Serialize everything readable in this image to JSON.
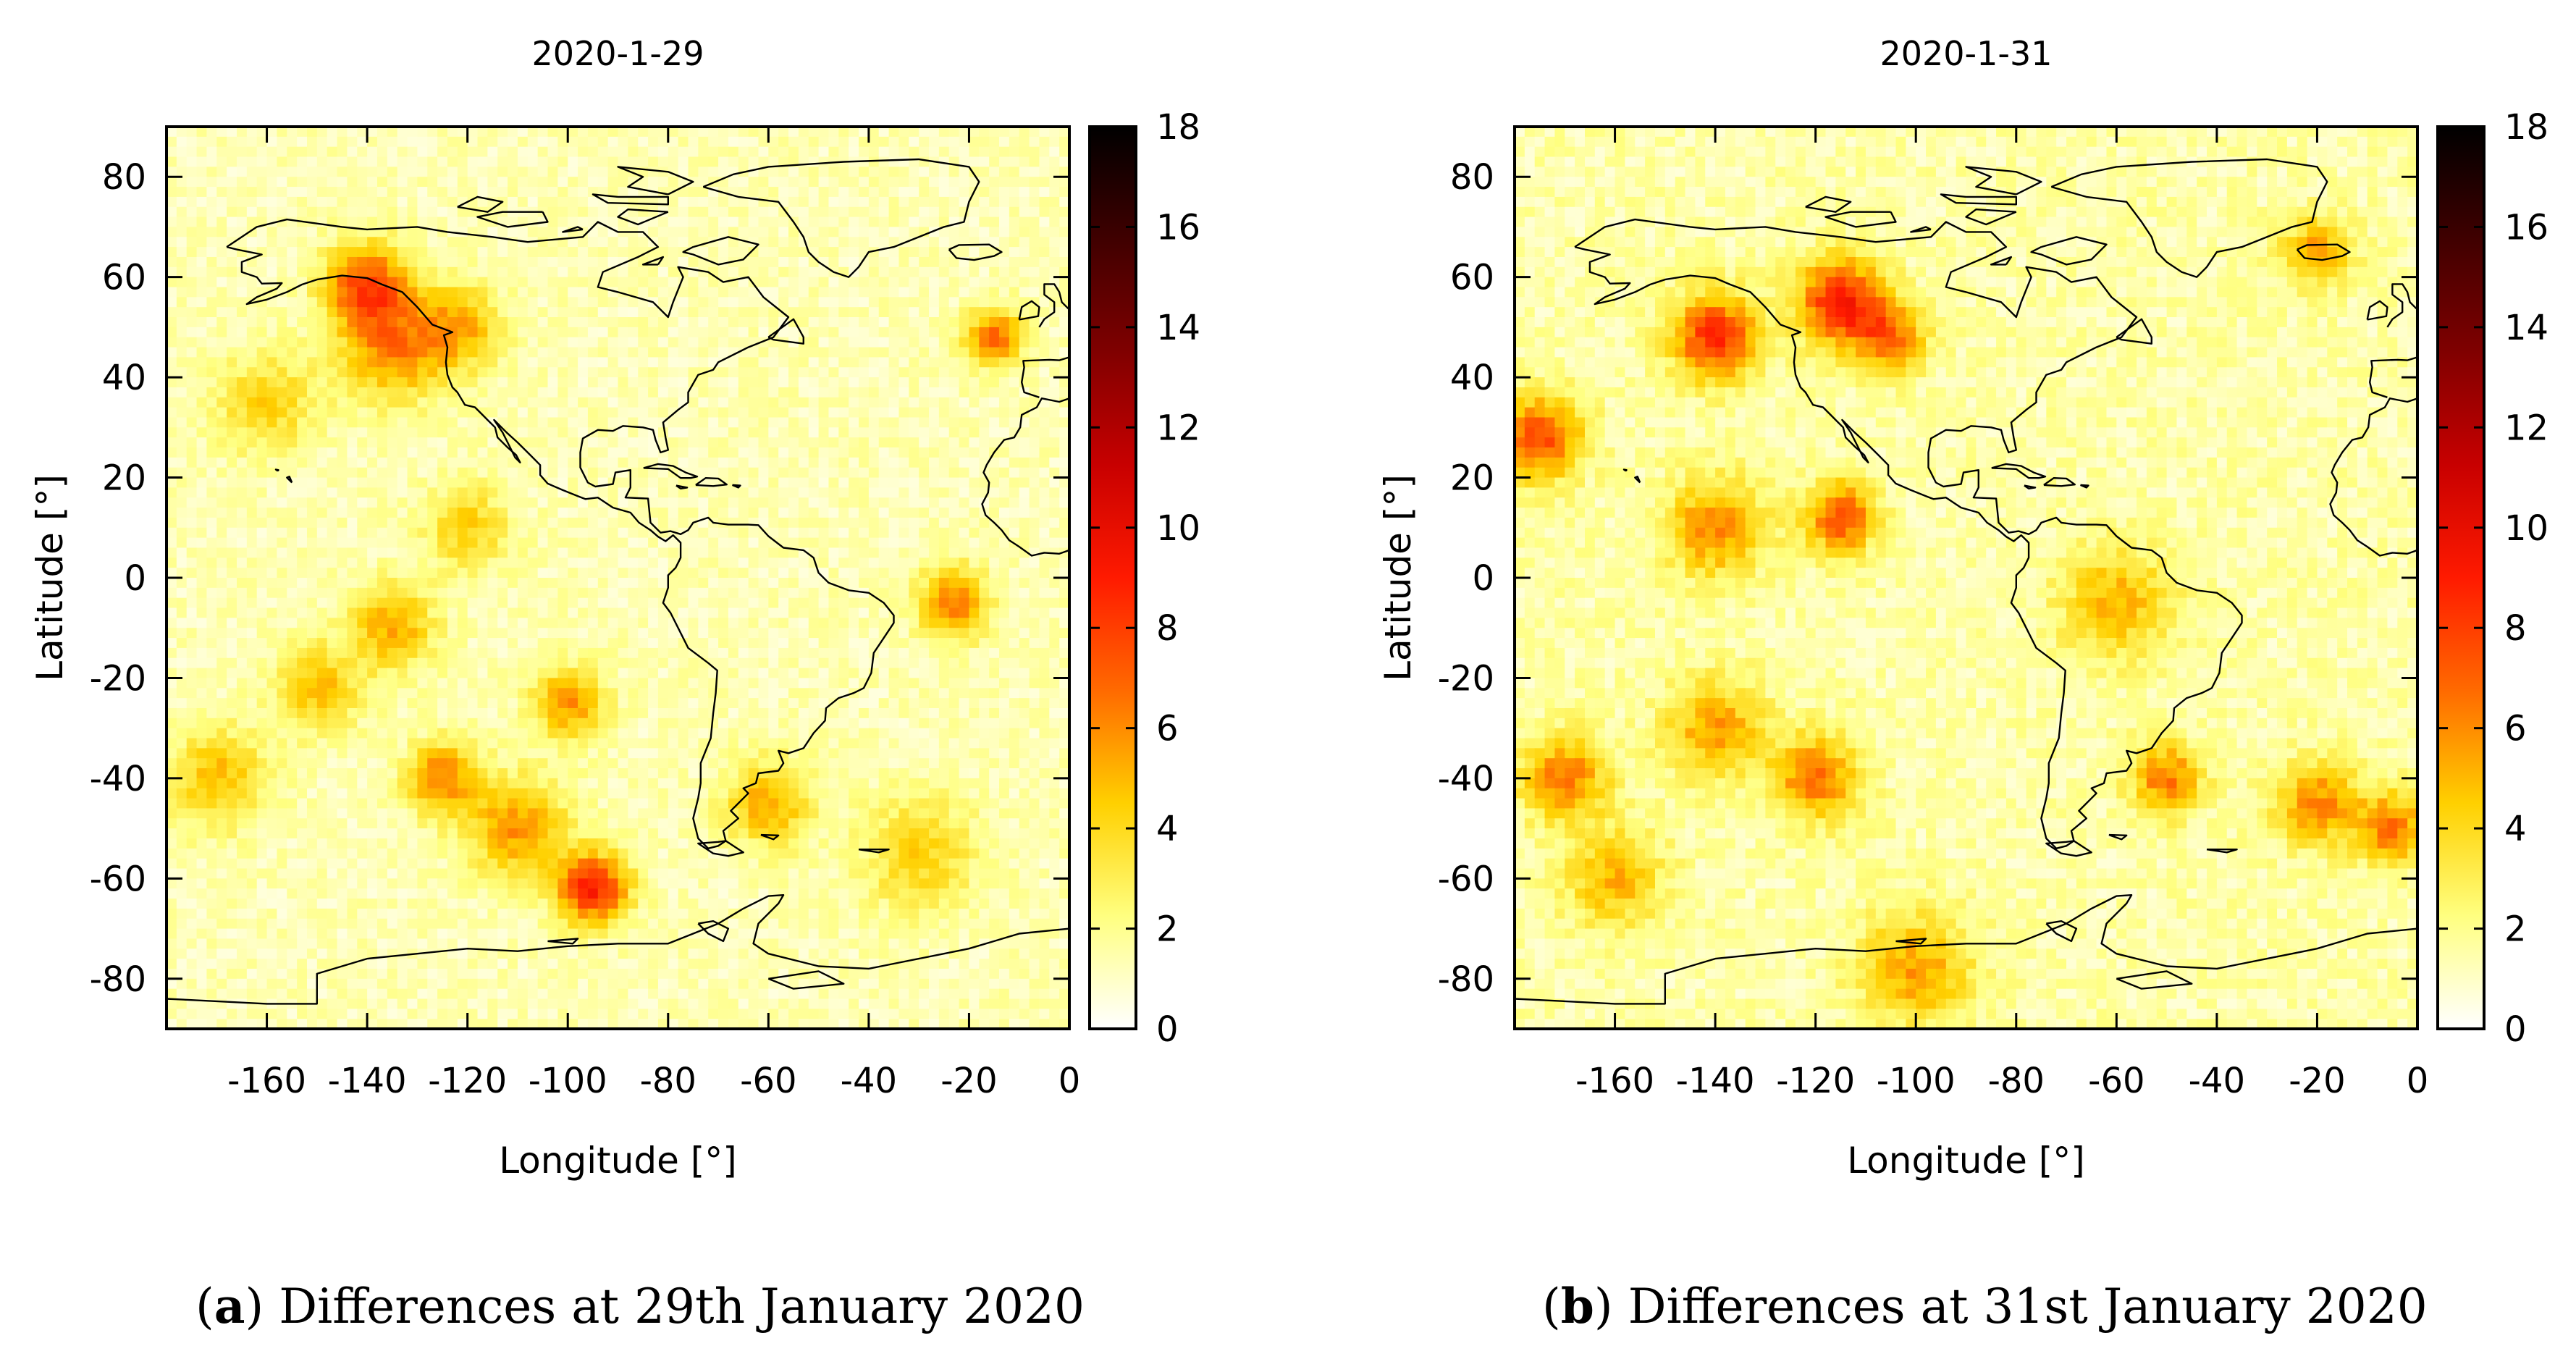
{
  "chart_data": [
    {
      "type": "heatmap",
      "title": "2020-1-29",
      "xlabel": "Longitude [°]",
      "ylabel": "Latitude [°]",
      "xlim": [
        -180,
        0
      ],
      "ylim": [
        -90,
        90
      ],
      "xticks": [
        -160,
        -140,
        -120,
        -100,
        -80,
        -60,
        -40,
        -20,
        0
      ],
      "yticks": [
        80,
        60,
        40,
        20,
        0,
        -20,
        -40,
        -60,
        -80
      ],
      "colorbar": {
        "range": [
          0,
          18
        ],
        "ticks": [
          18,
          16,
          14,
          12,
          10,
          8,
          6,
          4,
          2,
          0
        ]
      },
      "colormap": [
        "#ffffff",
        "#ffff80",
        "#ffd000",
        "#ff6a00",
        "#ff1a00",
        "#c80000",
        "#800000",
        "#400000",
        "#000000"
      ],
      "background_value": 1.3,
      "hotspots": [
        {
          "lon": -140,
          "lat": 58,
          "value": 6.5,
          "sigma": 6
        },
        {
          "lon": -135,
          "lat": 45,
          "value": 4.5,
          "sigma": 7
        },
        {
          "lon": -122,
          "lat": 50,
          "value": 4.0,
          "sigma": 6
        },
        {
          "lon": -95,
          "lat": -62,
          "value": 7.5,
          "sigma": 5
        },
        {
          "lon": -110,
          "lat": -50,
          "value": 4.5,
          "sigma": 7
        },
        {
          "lon": -125,
          "lat": -40,
          "value": 5.0,
          "sigma": 5
        },
        {
          "lon": -100,
          "lat": -25,
          "value": 4.5,
          "sigma": 5
        },
        {
          "lon": -23,
          "lat": -5,
          "value": 5.0,
          "sigma": 5
        },
        {
          "lon": -15,
          "lat": 48,
          "value": 5.5,
          "sigma": 4
        },
        {
          "lon": -135,
          "lat": -10,
          "value": 4.0,
          "sigma": 6
        },
        {
          "lon": -160,
          "lat": 35,
          "value": 3.0,
          "sigma": 7
        },
        {
          "lon": -170,
          "lat": -40,
          "value": 3.5,
          "sigma": 7
        },
        {
          "lon": -150,
          "lat": -22,
          "value": 3.5,
          "sigma": 6
        },
        {
          "lon": -60,
          "lat": -45,
          "value": 4.0,
          "sigma": 6
        },
        {
          "lon": -30,
          "lat": -55,
          "value": 3.0,
          "sigma": 8
        },
        {
          "lon": -120,
          "lat": 10,
          "value": 3.0,
          "sigma": 6
        }
      ]
    },
    {
      "type": "heatmap",
      "title": "2020-1-31",
      "xlabel": "Longitude [°]",
      "ylabel": "Latitude [°]",
      "xlim": [
        -180,
        0
      ],
      "ylim": [
        -90,
        90
      ],
      "xticks": [
        -160,
        -140,
        -120,
        -100,
        -80,
        -60,
        -40,
        -20,
        0
      ],
      "yticks": [
        80,
        60,
        40,
        20,
        0,
        -20,
        -40,
        -60,
        -80
      ],
      "colorbar": {
        "range": [
          0,
          18
        ],
        "ticks": [
          18,
          16,
          14,
          12,
          10,
          8,
          6,
          4,
          2,
          0
        ]
      },
      "colormap": [
        "#ffffff",
        "#ffff80",
        "#ffd000",
        "#ff6a00",
        "#ff1a00",
        "#c80000",
        "#800000",
        "#400000",
        "#000000"
      ],
      "background_value": 1.5,
      "hotspots": [
        {
          "lon": -140,
          "lat": 48,
          "value": 7.0,
          "sigma": 6
        },
        {
          "lon": -115,
          "lat": 55,
          "value": 7.5,
          "sigma": 6
        },
        {
          "lon": -105,
          "lat": 48,
          "value": 5.0,
          "sigma": 5
        },
        {
          "lon": -175,
          "lat": 28,
          "value": 6.0,
          "sigma": 6
        },
        {
          "lon": -115,
          "lat": 12,
          "value": 6.0,
          "sigma": 5
        },
        {
          "lon": -140,
          "lat": 10,
          "value": 4.5,
          "sigma": 7
        },
        {
          "lon": -170,
          "lat": -40,
          "value": 5.0,
          "sigma": 6
        },
        {
          "lon": -140,
          "lat": -30,
          "value": 4.0,
          "sigma": 7
        },
        {
          "lon": -120,
          "lat": -40,
          "value": 5.0,
          "sigma": 6
        },
        {
          "lon": -50,
          "lat": -40,
          "value": 5.0,
          "sigma": 5
        },
        {
          "lon": -20,
          "lat": -45,
          "value": 4.5,
          "sigma": 6
        },
        {
          "lon": -5,
          "lat": -50,
          "value": 5.0,
          "sigma": 5
        },
        {
          "lon": -20,
          "lat": 65,
          "value": 4.0,
          "sigma": 5
        },
        {
          "lon": -100,
          "lat": -78,
          "value": 4.0,
          "sigma": 8
        },
        {
          "lon": -60,
          "lat": -5,
          "value": 3.5,
          "sigma": 8
        },
        {
          "lon": -160,
          "lat": -60,
          "value": 3.5,
          "sigma": 7
        }
      ]
    }
  ],
  "captions": [
    {
      "letter": "a",
      "text": "Differences at 29th January 2020"
    },
    {
      "letter": "b",
      "text": "Differences at 31st January 2020"
    }
  ]
}
